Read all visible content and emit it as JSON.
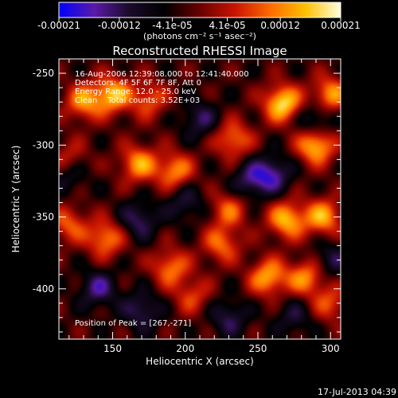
{
  "colorbar": {
    "ticks": [
      "-0.00021",
      "-0.00012",
      "-4.1e-05",
      "4.1e-05",
      "0.00012",
      "0.00021"
    ],
    "tick_values": [
      -0.00021,
      -0.00012,
      -4.1e-05,
      4.1e-05,
      0.00012,
      0.00021
    ],
    "vmin": -0.00021,
    "vmax": 0.00021,
    "unit_label": "(photons cm⁻² s⁻¹ asec⁻²)",
    "colors": [
      "#0000ff",
      "#5a1aa8",
      "#1a0b2a",
      "#000000",
      "#6a0000",
      "#c81400",
      "#ff6a00",
      "#ffc000",
      "#ffffe0"
    ]
  },
  "chart_data": {
    "type": "heatmap",
    "title": "Reconstructed RHESSI Image",
    "xlabel": "Heliocentric X (arcsec)",
    "ylabel": "Heliocentric Y (arcsec)",
    "xlim": [
      113,
      307
    ],
    "ylim": [
      -435,
      -240
    ],
    "x_ticks": [
      150,
      200,
      250,
      300
    ],
    "y_ticks": [
      -250,
      -300,
      -350,
      -400
    ],
    "annotations": [
      "16-Aug-2006 12:39:08.000 to 12:41:40.000",
      "Detectors: 4F 5F 6F 7F 8F, Att 0",
      "Energy Range: 12.0 - 25.0 keV",
      "Clean    Total counts: 3.52E+03"
    ],
    "peak_label": "Position of Peak = [267,-271]",
    "peak": [
      267,
      -271
    ],
    "blobs": [
      {
        "x": 267,
        "y": -271,
        "v": 1.0
      },
      {
        "x": 290,
        "y": -300,
        "v": 0.95
      },
      {
        "x": 300,
        "y": -265,
        "v": 0.75
      },
      {
        "x": 270,
        "y": -352,
        "v": 0.85
      },
      {
        "x": 295,
        "y": -350,
        "v": 0.78
      },
      {
        "x": 257,
        "y": -392,
        "v": 0.8
      },
      {
        "x": 283,
        "y": -392,
        "v": 0.7
      },
      {
        "x": 150,
        "y": -265,
        "v": 0.85
      },
      {
        "x": 130,
        "y": -270,
        "v": 0.7
      },
      {
        "x": 175,
        "y": -268,
        "v": 0.55
      },
      {
        "x": 168,
        "y": -313,
        "v": 0.75
      },
      {
        "x": 193,
        "y": -318,
        "v": 0.7
      },
      {
        "x": 120,
        "y": -310,
        "v": 0.45
      },
      {
        "x": 233,
        "y": -296,
        "v": 0.65
      },
      {
        "x": 230,
        "y": -345,
        "v": 0.55
      },
      {
        "x": 225,
        "y": -369,
        "v": 0.6
      },
      {
        "x": 145,
        "y": -365,
        "v": 0.7
      },
      {
        "x": 120,
        "y": -355,
        "v": 0.55
      },
      {
        "x": 190,
        "y": -385,
        "v": 0.65
      },
      {
        "x": 300,
        "y": -410,
        "v": 0.5
      },
      {
        "x": 205,
        "y": -405,
        "v": 0.45
      },
      {
        "x": 140,
        "y": -400,
        "v": -0.55
      },
      {
        "x": 168,
        "y": -352,
        "v": -0.5
      },
      {
        "x": 120,
        "y": -320,
        "v": -0.4
      },
      {
        "x": 210,
        "y": -282,
        "v": -0.45
      },
      {
        "x": 245,
        "y": -325,
        "v": -0.5
      },
      {
        "x": 260,
        "y": -320,
        "v": -0.6
      },
      {
        "x": 290,
        "y": -283,
        "v": -0.5
      },
      {
        "x": 200,
        "y": -340,
        "v": -0.4
      },
      {
        "x": 230,
        "y": -420,
        "v": -0.45
      },
      {
        "x": 170,
        "y": -415,
        "v": -0.5
      },
      {
        "x": 275,
        "y": -420,
        "v": -0.35
      },
      {
        "x": 300,
        "y": -380,
        "v": -0.4
      }
    ]
  },
  "footer": {
    "timestamp": "17-Jul-2013 04:39"
  }
}
